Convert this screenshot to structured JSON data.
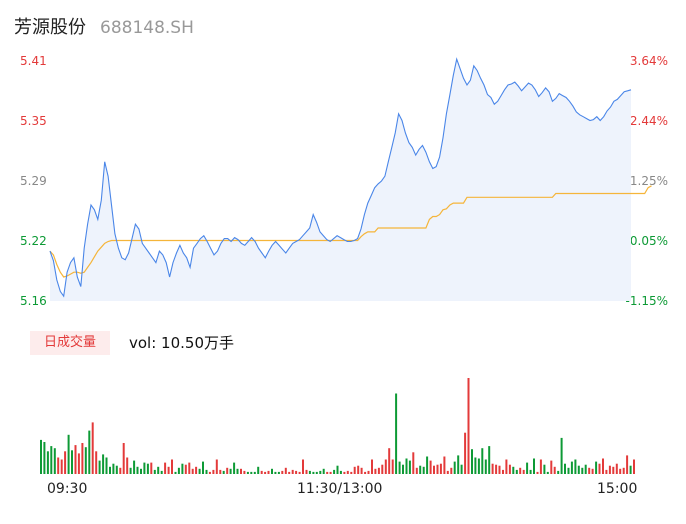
{
  "header": {
    "name": "芳源股份",
    "code": "688148.SH"
  },
  "price_axis": [
    "5.41",
    "5.35",
    "5.29",
    "5.22",
    "5.16"
  ],
  "pct_axis": [
    "3.64%",
    "2.44%",
    "1.25%",
    "0.05%",
    "-1.15%"
  ],
  "volume": {
    "button_label": "日成交量",
    "text": "vol: 10.50万手"
  },
  "time_axis": [
    "09:30",
    "11:30/13:00",
    "15:00"
  ],
  "colors": {
    "up": "#e33a3a",
    "down": "#0d9a35",
    "price_line": "#4a86e8",
    "avg_line": "#f5b53a",
    "area_fill": "#eef3fc"
  },
  "chart_data": [
    {
      "type": "line",
      "title": "",
      "ylim": [
        5.16,
        5.41
      ],
      "x_range": [
        "09:30",
        "15:00"
      ],
      "series": [
        {
          "values": [
            5.212,
            5.202,
            5.182,
            5.17,
            5.165,
            5.19,
            5.2,
            5.205,
            5.185,
            5.175,
            5.215,
            5.24,
            5.26,
            5.255,
            5.245,
            5.265,
            5.305,
            5.29,
            5.26,
            5.23,
            5.215,
            5.205,
            5.203,
            5.21,
            5.225,
            5.24,
            5.235,
            5.22,
            5.215,
            5.21,
            5.205,
            5.2,
            5.212,
            5.208,
            5.2,
            5.185,
            5.2,
            5.21,
            5.218,
            5.21,
            5.205,
            5.195,
            5.215,
            5.22,
            5.225,
            5.228,
            5.222,
            5.215,
            5.208,
            5.212,
            5.22,
            5.225,
            5.225,
            5.222,
            5.226,
            5.224,
            5.22,
            5.218,
            5.222,
            5.226,
            5.222,
            5.215,
            5.21,
            5.205,
            5.212,
            5.218,
            5.222,
            5.218,
            5.214,
            5.21,
            5.215,
            5.22,
            5.222,
            5.224,
            5.228,
            5.232,
            5.236,
            5.25,
            5.242,
            5.232,
            5.228,
            5.224,
            5.222,
            5.225,
            5.228,
            5.226,
            5.224,
            5.222,
            5.222,
            5.223,
            5.225,
            5.235,
            5.25,
            5.262,
            5.27,
            5.278,
            5.282,
            5.285,
            5.29,
            5.305,
            5.32,
            5.335,
            5.355,
            5.348,
            5.335,
            5.325,
            5.32,
            5.312,
            5.318,
            5.322,
            5.315,
            5.305,
            5.298,
            5.3,
            5.31,
            5.33,
            5.355,
            5.375,
            5.395,
            5.412,
            5.402,
            5.392,
            5.385,
            5.39,
            5.405,
            5.4,
            5.392,
            5.385,
            5.375,
            5.372,
            5.365,
            5.368,
            5.374,
            5.38,
            5.385,
            5.386,
            5.388,
            5.384,
            5.379,
            5.383,
            5.387,
            5.385,
            5.38,
            5.373,
            5.377,
            5.382,
            5.378,
            5.368,
            5.371,
            5.376,
            5.374,
            5.372,
            5.368,
            5.363,
            5.357,
            5.354,
            5.352,
            5.35,
            5.348,
            5.349,
            5.352,
            5.348,
            5.352,
            5.358,
            5.362,
            5.368,
            5.37,
            5.374,
            5.378,
            5.379,
            5.38
          ]
        },
        {
          "name": "avg",
          "values": [
            5.212,
            5.208,
            5.198,
            5.19,
            5.185,
            5.186,
            5.188,
            5.19,
            5.19,
            5.189,
            5.19,
            5.195,
            5.2,
            5.206,
            5.212,
            5.216,
            5.22,
            5.222,
            5.223,
            5.223,
            5.223,
            5.223,
            5.223,
            5.223,
            5.223,
            5.223,
            5.223,
            5.223,
            5.223,
            5.223,
            5.223,
            5.223,
            5.223,
            5.223,
            5.223,
            5.223,
            5.223,
            5.223,
            5.223,
            5.223,
            5.223,
            5.223,
            5.223,
            5.223,
            5.223,
            5.223,
            5.223,
            5.223,
            5.223,
            5.223,
            5.223,
            5.223,
            5.223,
            5.223,
            5.223,
            5.223,
            5.223,
            5.223,
            5.223,
            5.223,
            5.223,
            5.223,
            5.223,
            5.223,
            5.223,
            5.223,
            5.223,
            5.223,
            5.223,
            5.223,
            5.223,
            5.223,
            5.223,
            5.223,
            5.223,
            5.223,
            5.223,
            5.223,
            5.223,
            5.223,
            5.223,
            5.223,
            5.223,
            5.223,
            5.223,
            5.223,
            5.223,
            5.223,
            5.223,
            5.223,
            5.223,
            5.227,
            5.23,
            5.232,
            5.232,
            5.232,
            5.236,
            5.236,
            5.236,
            5.236,
            5.236,
            5.236,
            5.236,
            5.236,
            5.236,
            5.236,
            5.236,
            5.236,
            5.236,
            5.236,
            5.236,
            5.245,
            5.248,
            5.248,
            5.25,
            5.255,
            5.256,
            5.26,
            5.262,
            5.262,
            5.262,
            5.262,
            5.268,
            5.268,
            5.268,
            5.268,
            5.268,
            5.268,
            5.268,
            5.268,
            5.268,
            5.268,
            5.268,
            5.268,
            5.268,
            5.268,
            5.268,
            5.268,
            5.268,
            5.268,
            5.268,
            5.268,
            5.268,
            5.268,
            5.268,
            5.268,
            5.268,
            5.268,
            5.272,
            5.272,
            5.272,
            5.272,
            5.272,
            5.272,
            5.272,
            5.272,
            5.272,
            5.272,
            5.272,
            5.272,
            5.272,
            5.272,
            5.272,
            5.272,
            5.272,
            5.272,
            5.272,
            5.272,
            5.272,
            5.272,
            5.272,
            5.272,
            5.272,
            5.272,
            5.272,
            5.278,
            5.28
          ]
        }
      ]
    },
    {
      "type": "bar",
      "title": "",
      "series": [
        {
          "name": "vol",
          "values": [
            33,
            31,
            22,
            27,
            25,
            16,
            14,
            22,
            38,
            23,
            28,
            20,
            30,
            26,
            42,
            50,
            22,
            13,
            19,
            16,
            7,
            10,
            8,
            6,
            30,
            16,
            6,
            13,
            7,
            5,
            11,
            10,
            11,
            4,
            7,
            3,
            11,
            7,
            14,
            2,
            6,
            10,
            9,
            11,
            5,
            7,
            5,
            12,
            4,
            2,
            4,
            14,
            4,
            3,
            6,
            5,
            11,
            5,
            5,
            3,
            2,
            2,
            2,
            7,
            3,
            2,
            3,
            5,
            2,
            2,
            3,
            6,
            2,
            4,
            3,
            2,
            14,
            4,
            3,
            2,
            2,
            3,
            5,
            2,
            2,
            4,
            8,
            3,
            2,
            3,
            2,
            7,
            8,
            6,
            2,
            3,
            14,
            5,
            6,
            9,
            14,
            25,
            14,
            78,
            12,
            9,
            15,
            13,
            21,
            6,
            8,
            7,
            17,
            13,
            8,
            9,
            10,
            17,
            3,
            6,
            12,
            18,
            9,
            40,
            93,
            24,
            16,
            15,
            25,
            14,
            27,
            10,
            9,
            8,
            4,
            14,
            9,
            7,
            4,
            6,
            4,
            11,
            4,
            15,
            2,
            14,
            9,
            2,
            13,
            7,
            3,
            35,
            10,
            6,
            12,
            14,
            8,
            6,
            9,
            6,
            5,
            12,
            10,
            15,
            4,
            8,
            7,
            10,
            5,
            6,
            18,
            8,
            14
          ]
        }
      ]
    }
  ]
}
